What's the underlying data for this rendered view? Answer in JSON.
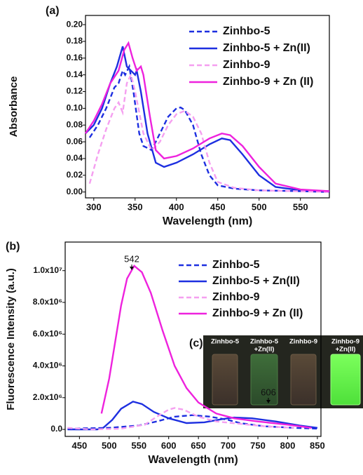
{
  "chart_data": [
    {
      "type": "line",
      "panel_label": "(a)",
      "x_label": "Wavelength (nm)",
      "y_label": "Absorbance",
      "xlim": [
        290,
        585
      ],
      "ylim": [
        -0.007,
        0.211
      ],
      "xticks": [
        300,
        350,
        400,
        450,
        500,
        550
      ],
      "yticks": [
        {
          "value": 0,
          "label": "0.00"
        },
        {
          "value": 0.02,
          "label": "0.02"
        },
        {
          "value": 0.04,
          "label": "0.04"
        },
        {
          "value": 0.06,
          "label": "0.06"
        },
        {
          "value": 0.08,
          "label": "0.08"
        },
        {
          "value": 0.1,
          "label": "0.10"
        },
        {
          "value": 0.12,
          "label": "0.12"
        },
        {
          "value": 0.14,
          "label": "0.14"
        },
        {
          "value": 0.16,
          "label": "0.16"
        },
        {
          "value": 0.18,
          "label": "0.18"
        },
        {
          "value": 0.2,
          "label": "0.20"
        }
      ],
      "legend": "upper right",
      "series": [
        {
          "name": "Zinhbo-5",
          "color": "#1d2fe0",
          "dashed": true,
          "x": [
            295,
            305,
            315,
            325,
            330,
            335,
            338,
            343,
            348,
            355,
            360,
            370,
            380,
            390,
            400,
            405,
            410,
            420,
            430,
            440,
            450,
            470,
            500,
            550,
            585
          ],
          "values": [
            0.065,
            0.08,
            0.1,
            0.125,
            0.13,
            0.145,
            0.14,
            0.15,
            0.12,
            0.07,
            0.055,
            0.05,
            0.07,
            0.09,
            0.1,
            0.101,
            0.098,
            0.08,
            0.045,
            0.02,
            0.008,
            0.004,
            0.002,
            0.001,
            0
          ]
        },
        {
          "name": "Zinhbo-5 + Zn(II)",
          "color": "#1d2fe0",
          "dashed": false,
          "x": [
            290,
            300,
            310,
            320,
            328,
            335,
            340,
            345,
            350,
            352,
            357,
            365,
            375,
            385,
            400,
            420,
            440,
            455,
            465,
            480,
            500,
            520,
            550,
            585
          ],
          "values": [
            0.07,
            0.08,
            0.1,
            0.13,
            0.15,
            0.174,
            0.15,
            0.145,
            0.14,
            0.145,
            0.12,
            0.07,
            0.035,
            0.03,
            0.035,
            0.045,
            0.057,
            0.064,
            0.062,
            0.045,
            0.02,
            0.006,
            0.002,
            0.001
          ]
        },
        {
          "name": "Zinhbo-9",
          "color": "#f59ff0",
          "dashed": true,
          "x": [
            295,
            305,
            315,
            325,
            330,
            335,
            340,
            345,
            350,
            360,
            370,
            380,
            390,
            400,
            410,
            420,
            430,
            440,
            450,
            470,
            500,
            585
          ],
          "values": [
            0.01,
            0.045,
            0.075,
            0.1,
            0.107,
            0.095,
            0.13,
            0.14,
            0.12,
            0.07,
            0.05,
            0.06,
            0.08,
            0.093,
            0.097,
            0.09,
            0.07,
            0.035,
            0.012,
            0.005,
            0.002,
            0
          ]
        },
        {
          "name": "Zinhbo-9 + Zn (II)",
          "color": "#ee22dd",
          "dashed": false,
          "x": [
            290,
            300,
            310,
            320,
            330,
            337,
            342,
            347,
            352,
            357,
            360,
            368,
            375,
            385,
            400,
            420,
            440,
            455,
            465,
            480,
            500,
            520,
            550,
            585
          ],
          "values": [
            0.07,
            0.085,
            0.105,
            0.13,
            0.145,
            0.17,
            0.178,
            0.16,
            0.145,
            0.15,
            0.14,
            0.09,
            0.05,
            0.04,
            0.043,
            0.052,
            0.064,
            0.07,
            0.068,
            0.055,
            0.03,
            0.01,
            0.003,
            0.001
          ]
        }
      ]
    },
    {
      "type": "line",
      "panel_label": "(b)",
      "x_label": "Wavelength (nm)",
      "y_label": "Fluorescence Intensity (a.u.)",
      "xlim": [
        426,
        856
      ],
      "ylim": [
        -440000,
        11800000
      ],
      "xticks": [
        450,
        500,
        550,
        600,
        650,
        700,
        750,
        800,
        850
      ],
      "yticks": [
        {
          "value": 0,
          "label": "0.0"
        },
        {
          "value": 2000000,
          "label": "2.0x10⁶"
        },
        {
          "value": 4000000,
          "label": "4.0x10⁶"
        },
        {
          "value": 6000000,
          "label": "6.0x10⁶"
        },
        {
          "value": 8000000,
          "label": "8.0x10⁶"
        },
        {
          "value": 10000000,
          "label": "1.0x10⁷"
        }
      ],
      "legend": "upper right",
      "annotations": [
        "542",
        "606"
      ],
      "series": [
        {
          "name": "Zinhbo-5",
          "color": "#1d2fe0",
          "dashed": true,
          "x": [
            430,
            500,
            550,
            580,
            610,
            640,
            670,
            700,
            720,
            760,
            810,
            850
          ],
          "values": [
            50000,
            100000,
            250000,
            500000,
            800000,
            900000,
            800000,
            600000,
            400000,
            200000,
            100000,
            50000
          ]
        },
        {
          "name": "Zinhbo-5 + Zn(II)",
          "color": "#1d2fe0",
          "dashed": false,
          "x": [
            430,
            480,
            490,
            505,
            520,
            540,
            555,
            575,
            600,
            630,
            660,
            690,
            710,
            740,
            780,
            820,
            850
          ],
          "values": [
            0,
            0,
            100000,
            600000,
            1300000,
            1750000,
            1600000,
            1100000,
            700000,
            400000,
            450000,
            650000,
            750000,
            700000,
            500000,
            250000,
            100000
          ]
        },
        {
          "name": "Zinhbo-9",
          "color": "#f59ff0",
          "dashed": true,
          "x": [
            430,
            470,
            520,
            560,
            580,
            600,
            610,
            625,
            650,
            680,
            720,
            760,
            810
          ],
          "values": [
            100000,
            0,
            50000,
            300000,
            800000,
            1250000,
            1350000,
            1250000,
            800000,
            500000,
            350000,
            200000,
            100000
          ]
        },
        {
          "name": "Zinhbo-9 + Zn (II)",
          "color": "#ee22dd",
          "dashed": false,
          "x": [
            487,
            500,
            510,
            520,
            530,
            542,
            555,
            570,
            590,
            610,
            630,
            650,
            680,
            710,
            750,
            800,
            840
          ],
          "values": [
            1000000,
            3200000,
            5500000,
            7800000,
            9500000,
            10300000,
            9900000,
            8600000,
            6200000,
            4000000,
            2600000,
            1700000,
            1000000,
            700000,
            500000,
            300000,
            100000
          ]
        }
      ]
    }
  ],
  "inset": {
    "panel_label": "(c)",
    "vials": [
      [
        "Zinhbo-5"
      ],
      [
        "Zinhbo-5",
        "+Zn(II)"
      ],
      [
        "Zinhbo-9"
      ],
      [
        "Zinhbo-9",
        "+Zn(II)"
      ]
    ]
  }
}
